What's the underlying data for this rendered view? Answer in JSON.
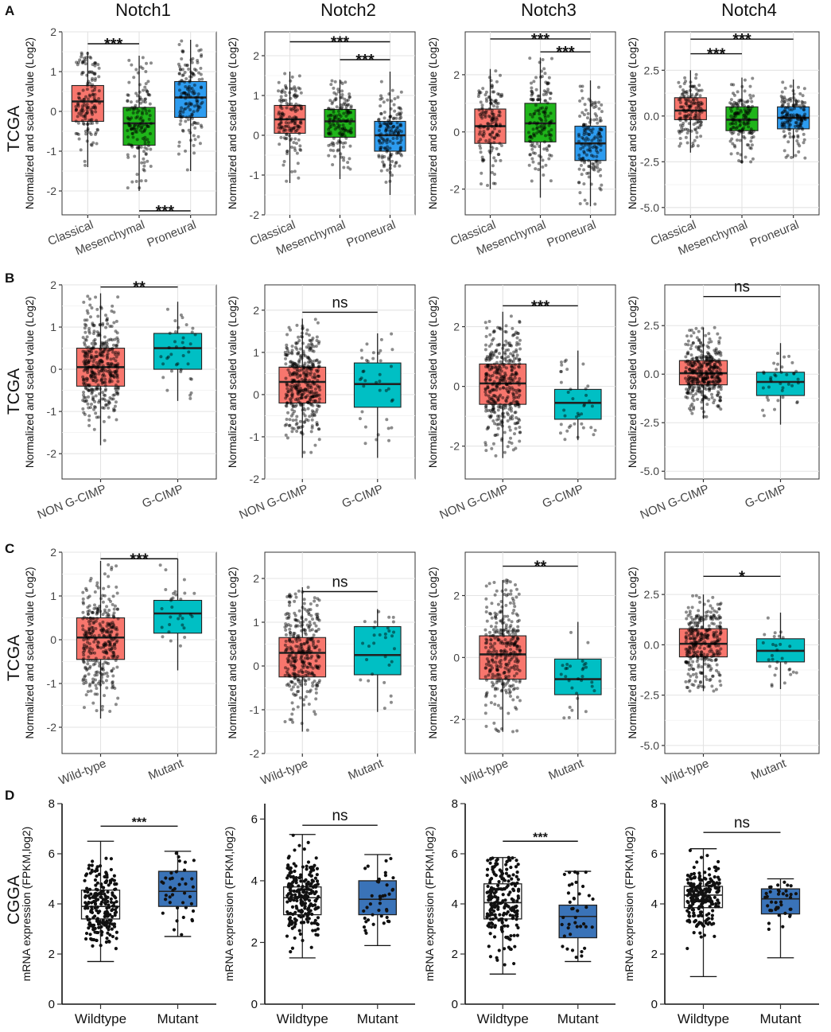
{
  "figure": {
    "genes": [
      "Notch1",
      "Notch2",
      "Notch3",
      "Notch4"
    ],
    "row_labels": [
      "A",
      "B",
      "C",
      "D"
    ],
    "row_side_labels": [
      "TCGA",
      "TCGA",
      "TCGA",
      "CGGA"
    ]
  },
  "chart_data": [
    {
      "type": "box",
      "row": "A",
      "gene": "Notch1",
      "style": "ggplot",
      "ylabel": "Normalized and scaled value (Log2)",
      "ylim": [
        -2.6,
        2
      ],
      "yticks": [
        -2,
        -1,
        0,
        1,
        2
      ],
      "categories": [
        "Classical",
        "Mesenchymal",
        "Proneural"
      ],
      "boxes": [
        {
          "q1": -0.25,
          "median": 0.25,
          "q3": 0.65,
          "wlo": -1.4,
          "whi": 1.5,
          "color": "#F8766D",
          "n": 150
        },
        {
          "q1": -0.85,
          "median": -0.3,
          "q3": 0.1,
          "wlo": -2.0,
          "whi": 1.4,
          "color": "#1FB51A",
          "n": 150
        },
        {
          "q1": -0.15,
          "median": 0.35,
          "q3": 0.75,
          "wlo": -1.5,
          "whi": 1.8,
          "color": "#2D9CF0",
          "n": 150
        }
      ],
      "brackets": [
        {
          "from": 0,
          "to": 1,
          "y": 1.7,
          "label": "***"
        },
        {
          "from": 1,
          "to": 2,
          "y": -2.5,
          "label": "***"
        }
      ]
    },
    {
      "type": "box",
      "row": "A",
      "gene": "Notch2",
      "style": "ggplot",
      "ylabel": "Normalized and scaled value (Log2)",
      "ylim": [
        -2,
        2.6
      ],
      "yticks": [
        -2,
        -1,
        0,
        1,
        2
      ],
      "categories": [
        "Classical",
        "Mesenchymal",
        "Proneural"
      ],
      "boxes": [
        {
          "q1": 0.05,
          "median": 0.4,
          "q3": 0.75,
          "wlo": -1.2,
          "whi": 1.6,
          "color": "#F8766D",
          "n": 150
        },
        {
          "q1": -0.05,
          "median": 0.35,
          "q3": 0.65,
          "wlo": -1.1,
          "whi": 1.4,
          "color": "#1FB51A",
          "n": 150
        },
        {
          "q1": -0.4,
          "median": 0.0,
          "q3": 0.35,
          "wlo": -1.5,
          "whi": 1.6,
          "color": "#2D9CF0",
          "n": 150
        }
      ],
      "brackets": [
        {
          "from": 0,
          "to": 2,
          "y": 2.35,
          "label": "***"
        },
        {
          "from": 1,
          "to": 2,
          "y": 1.9,
          "label": "***"
        }
      ]
    },
    {
      "type": "box",
      "row": "A",
      "gene": "Notch3",
      "style": "ggplot",
      "ylabel": "Normalized and scaled value (Log2)",
      "ylim": [
        -2.9,
        3.5
      ],
      "yticks": [
        -2,
        0,
        2
      ],
      "categories": [
        "Classical",
        "Mesenchymal",
        "Proneural"
      ],
      "boxes": [
        {
          "q1": -0.4,
          "median": 0.2,
          "q3": 0.8,
          "wlo": -2.0,
          "whi": 2.2,
          "color": "#F8766D",
          "n": 150
        },
        {
          "q1": -0.35,
          "median": 0.3,
          "q3": 1.0,
          "wlo": -2.3,
          "whi": 2.6,
          "color": "#1FB51A",
          "n": 150
        },
        {
          "q1": -1.0,
          "median": -0.4,
          "q3": 0.2,
          "wlo": -2.6,
          "whi": 1.8,
          "color": "#2D9CF0",
          "n": 150
        }
      ],
      "brackets": [
        {
          "from": 0,
          "to": 2,
          "y": 3.25,
          "label": "***"
        },
        {
          "from": 1,
          "to": 2,
          "y": 2.8,
          "label": "***"
        }
      ]
    },
    {
      "type": "box",
      "row": "A",
      "gene": "Notch4",
      "style": "ggplot",
      "ylabel": "Normalized and scaled value (Log2)",
      "ylim": [
        -5.4,
        4.6
      ],
      "yticks": [
        -5,
        -2.5,
        0,
        2.5
      ],
      "ytick_labels": [
        "-5.0",
        "-2.5",
        "0.0",
        "2.5"
      ],
      "categories": [
        "Classical",
        "Mesenchymal",
        "Proneural"
      ],
      "boxes": [
        {
          "q1": -0.2,
          "median": 0.3,
          "q3": 1.0,
          "wlo": -2.0,
          "whi": 2.5,
          "color": "#F8766D",
          "n": 150
        },
        {
          "q1": -0.8,
          "median": -0.2,
          "q3": 0.5,
          "wlo": -2.6,
          "whi": 2.1,
          "color": "#1FB51A",
          "n": 150
        },
        {
          "q1": -0.7,
          "median": -0.1,
          "q3": 0.5,
          "wlo": -2.3,
          "whi": 2.0,
          "color": "#2D9CF0",
          "n": 150
        }
      ],
      "brackets": [
        {
          "from": 0,
          "to": 2,
          "y": 4.2,
          "label": "***"
        },
        {
          "from": 0,
          "to": 1,
          "y": 3.4,
          "label": "***"
        }
      ]
    },
    {
      "type": "box",
      "row": "B",
      "gene": "Notch1",
      "style": "ggplot",
      "ylabel": "Normalized and scaled value (Log2)",
      "ylim": [
        -2.6,
        2
      ],
      "yticks": [
        -2,
        -1,
        0,
        1,
        2
      ],
      "categories": [
        "NON G-CIMP",
        "G-CIMP"
      ],
      "boxes": [
        {
          "q1": -0.4,
          "median": 0.05,
          "q3": 0.5,
          "wlo": -1.8,
          "whi": 1.8,
          "color": "#F8766D",
          "n": 380
        },
        {
          "q1": 0.0,
          "median": 0.5,
          "q3": 0.85,
          "wlo": -0.75,
          "whi": 1.6,
          "color": "#00BFC4",
          "n": 38
        }
      ],
      "brackets": [
        {
          "from": 0,
          "to": 1,
          "y": 1.95,
          "label": "**"
        }
      ]
    },
    {
      "type": "box",
      "row": "B",
      "gene": "Notch2",
      "style": "ggplot",
      "ylabel": "Normalized and scaled value (Log2)",
      "ylim": [
        -2,
        2.6
      ],
      "yticks": [
        -2,
        -1,
        0,
        1,
        2
      ],
      "categories": [
        "NON G-CIMP",
        "G-CIMP"
      ],
      "boxes": [
        {
          "q1": -0.2,
          "median": 0.3,
          "q3": 0.65,
          "wlo": -1.5,
          "whi": 1.8,
          "color": "#F8766D",
          "n": 380
        },
        {
          "q1": -0.3,
          "median": 0.25,
          "q3": 0.75,
          "wlo": -1.5,
          "whi": 1.45,
          "color": "#00BFC4",
          "n": 38
        }
      ],
      "brackets": [
        {
          "from": 0,
          "to": 1,
          "y": 1.95,
          "label": "ns"
        }
      ]
    },
    {
      "type": "box",
      "row": "B",
      "gene": "Notch3",
      "style": "ggplot",
      "ylabel": "Normalized and scaled value (Log2)",
      "ylim": [
        -3.1,
        3.4
      ],
      "yticks": [
        -2,
        0,
        2
      ],
      "categories": [
        "NON G-CIMP",
        "G-CIMP"
      ],
      "boxes": [
        {
          "q1": -0.6,
          "median": 0.1,
          "q3": 0.75,
          "wlo": -2.4,
          "whi": 2.5,
          "color": "#F8766D",
          "n": 380
        },
        {
          "q1": -1.1,
          "median": -0.55,
          "q3": -0.1,
          "wlo": -1.8,
          "whi": 1.2,
          "color": "#00BFC4",
          "n": 38
        }
      ],
      "brackets": [
        {
          "from": 0,
          "to": 1,
          "y": 2.7,
          "label": "***"
        }
      ]
    },
    {
      "type": "box",
      "row": "B",
      "gene": "Notch4",
      "style": "ggplot",
      "ylabel": "Normalized and scaled value (Log2)",
      "ylim": [
        -5.4,
        4.6
      ],
      "yticks": [
        -5,
        -2.5,
        0,
        2.5
      ],
      "ytick_labels": [
        "-5.0",
        "-2.5",
        "0.0",
        "2.5"
      ],
      "categories": [
        "NON G-CIMP",
        "G-CIMP"
      ],
      "boxes": [
        {
          "q1": -0.55,
          "median": 0.05,
          "q3": 0.7,
          "wlo": -2.3,
          "whi": 2.4,
          "color": "#F8766D",
          "n": 380
        },
        {
          "q1": -1.1,
          "median": -0.4,
          "q3": 0.1,
          "wlo": -2.6,
          "whi": 1.6,
          "color": "#00BFC4",
          "n": 38
        }
      ],
      "brackets": [
        {
          "from": 0,
          "to": 1,
          "y": 4.0,
          "label": "ns"
        }
      ]
    },
    {
      "type": "box",
      "row": "C",
      "gene": "Notch1",
      "style": "ggplot",
      "ylabel": "Normalized and scaled value (Log2)",
      "ylim": [
        -2.6,
        2
      ],
      "yticks": [
        -2,
        -1,
        0,
        1,
        2
      ],
      "categories": [
        "Wild-type",
        "Mutant"
      ],
      "boxes": [
        {
          "q1": -0.45,
          "median": 0.05,
          "q3": 0.5,
          "wlo": -1.8,
          "whi": 1.8,
          "color": "#F8766D",
          "n": 320
        },
        {
          "q1": 0.15,
          "median": 0.6,
          "q3": 0.9,
          "wlo": -0.7,
          "whi": 1.85,
          "color": "#00BFC4",
          "n": 30
        }
      ],
      "brackets": [
        {
          "from": 0,
          "to": 1,
          "y": 1.85,
          "label": "***"
        }
      ]
    },
    {
      "type": "box",
      "row": "C",
      "gene": "Notch2",
      "style": "ggplot",
      "ylabel": "Normalized and scaled value (Log2)",
      "ylim": [
        -2,
        2.6
      ],
      "yticks": [
        -2,
        -1,
        0,
        1,
        2
      ],
      "categories": [
        "Wild-type",
        "Mutant"
      ],
      "boxes": [
        {
          "q1": -0.25,
          "median": 0.3,
          "q3": 0.65,
          "wlo": -1.5,
          "whi": 1.8,
          "color": "#F8766D",
          "n": 320
        },
        {
          "q1": -0.2,
          "median": 0.25,
          "q3": 0.9,
          "wlo": -1.05,
          "whi": 1.3,
          "color": "#00BFC4",
          "n": 30
        }
      ],
      "brackets": [
        {
          "from": 0,
          "to": 1,
          "y": 1.7,
          "label": "ns"
        }
      ]
    },
    {
      "type": "box",
      "row": "C",
      "gene": "Notch3",
      "style": "ggplot",
      "ylabel": "Normalized and scaled value (Log2)",
      "ylim": [
        -3.1,
        3.4
      ],
      "yticks": [
        -2,
        0,
        2
      ],
      "categories": [
        "Wild-type",
        "Mutant"
      ],
      "boxes": [
        {
          "q1": -0.7,
          "median": 0.1,
          "q3": 0.7,
          "wlo": -2.4,
          "whi": 2.5,
          "color": "#F8766D",
          "n": 320
        },
        {
          "q1": -1.2,
          "median": -0.7,
          "q3": -0.05,
          "wlo": -2.0,
          "whi": 1.15,
          "color": "#00BFC4",
          "n": 30
        }
      ],
      "brackets": [
        {
          "from": 0,
          "to": 1,
          "y": 2.95,
          "label": "**"
        }
      ]
    },
    {
      "type": "box",
      "row": "C",
      "gene": "Notch4",
      "style": "ggplot",
      "ylabel": "Normalized and scaled value (Log2)",
      "ylim": [
        -5.4,
        4.6
      ],
      "yticks": [
        -5,
        -2.5,
        0,
        2.5
      ],
      "ytick_labels": [
        "-5.0",
        "-2.5",
        "0.0",
        "2.5"
      ],
      "categories": [
        "Wild-type",
        "Mutant"
      ],
      "boxes": [
        {
          "q1": -0.6,
          "median": 0.05,
          "q3": 0.8,
          "wlo": -2.3,
          "whi": 2.5,
          "color": "#F8766D",
          "n": 320
        },
        {
          "q1": -0.85,
          "median": -0.3,
          "q3": 0.3,
          "wlo": -2.2,
          "whi": 1.6,
          "color": "#00BFC4",
          "n": 30
        }
      ],
      "brackets": [
        {
          "from": 0,
          "to": 1,
          "y": 3.4,
          "label": "*"
        }
      ]
    },
    {
      "type": "box",
      "row": "D",
      "gene": "Notch1",
      "style": "prism",
      "ylabel": "mRNA expression (FPKM,log2)",
      "ylim": [
        0,
        8
      ],
      "yticks": [
        0,
        2,
        4,
        6,
        8
      ],
      "categories": [
        "Wildtype",
        "Mutant"
      ],
      "boxes": [
        {
          "q1": 3.4,
          "median": 3.9,
          "q3": 4.55,
          "wlo": 1.7,
          "whi": 6.5,
          "color": "#ffffff",
          "n": 220
        },
        {
          "q1": 3.9,
          "median": 4.5,
          "q3": 5.3,
          "wlo": 2.7,
          "whi": 6.1,
          "color": "#3A73B8",
          "n": 40
        }
      ],
      "brackets": [
        {
          "from": 0,
          "to": 1,
          "y": 7.1,
          "label": "***"
        }
      ]
    },
    {
      "type": "box",
      "row": "D",
      "gene": "Notch2",
      "style": "prism",
      "ylabel": "mRNA expression (FPKM,log2)",
      "ylim": [
        0,
        6.5
      ],
      "yticks": [
        0,
        2,
        4,
        6
      ],
      "categories": [
        "Wildtype",
        "Mutant"
      ],
      "boxes": [
        {
          "q1": 2.9,
          "median": 3.45,
          "q3": 3.8,
          "wlo": 1.5,
          "whi": 5.5,
          "color": "#ffffff",
          "n": 220
        },
        {
          "q1": 2.9,
          "median": 3.4,
          "q3": 4.0,
          "wlo": 1.9,
          "whi": 4.85,
          "color": "#3A73B8",
          "n": 40
        }
      ],
      "brackets": [
        {
          "from": 0,
          "to": 1,
          "y": 5.8,
          "label": "ns"
        }
      ]
    },
    {
      "type": "box",
      "row": "D",
      "gene": "Notch3",
      "style": "prism",
      "ylabel": "mRNA expression (FPKM,log2)",
      "ylim": [
        0,
        8
      ],
      "yticks": [
        0,
        2,
        4,
        6,
        8
      ],
      "categories": [
        "Wildtype",
        "Mutant"
      ],
      "boxes": [
        {
          "q1": 3.4,
          "median": 4.05,
          "q3": 4.8,
          "wlo": 1.2,
          "whi": 5.85,
          "color": "#ffffff",
          "n": 220
        },
        {
          "q1": 2.65,
          "median": 3.5,
          "q3": 3.95,
          "wlo": 1.7,
          "whi": 5.3,
          "color": "#3A73B8",
          "n": 40
        }
      ],
      "brackets": [
        {
          "from": 0,
          "to": 1,
          "y": 6.5,
          "label": "***"
        }
      ]
    },
    {
      "type": "box",
      "row": "D",
      "gene": "Notch4",
      "style": "prism",
      "ylabel": "mRNA expression (FPKM,log2)",
      "ylim": [
        0,
        8
      ],
      "yticks": [
        0,
        2,
        4,
        6,
        8
      ],
      "categories": [
        "Wildtype",
        "Mutant"
      ],
      "boxes": [
        {
          "q1": 3.85,
          "median": 4.35,
          "q3": 4.7,
          "wlo": 1.1,
          "whi": 6.2,
          "color": "#ffffff",
          "n": 220
        },
        {
          "q1": 3.6,
          "median": 4.2,
          "q3": 4.6,
          "wlo": 1.85,
          "whi": 5.0,
          "color": "#3A73B8",
          "n": 40
        }
      ],
      "brackets": [
        {
          "from": 0,
          "to": 1,
          "y": 6.85,
          "label": "ns"
        }
      ]
    }
  ]
}
